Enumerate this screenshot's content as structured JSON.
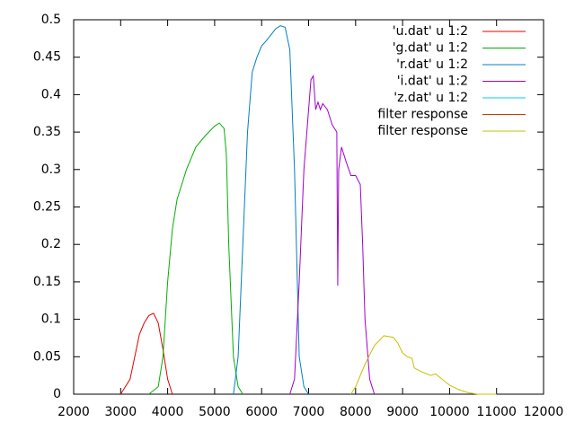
{
  "chart_data": {
    "type": "line",
    "xlim": [
      2000,
      12000
    ],
    "xticks": [
      2000,
      3000,
      4000,
      5000,
      6000,
      7000,
      8000,
      9000,
      10000,
      11000,
      12000
    ],
    "ylim": [
      0,
      0.5
    ],
    "yticks": [
      0,
      0.05,
      0.1,
      0.15,
      0.2,
      0.25,
      0.3,
      0.35,
      0.4,
      0.45,
      0.5
    ],
    "grid": false,
    "legend": "top-right",
    "series": [
      {
        "name": "'u.dat' u 1:2",
        "color": "#e00000",
        "x": [
          3000,
          3200,
          3300,
          3400,
          3500,
          3600,
          3700,
          3800,
          3900,
          4000,
          4100
        ],
        "values": [
          0,
          0.02,
          0.05,
          0.08,
          0.095,
          0.105,
          0.108,
          0.095,
          0.06,
          0.02,
          0
        ]
      },
      {
        "name": "'g.dat' u 1:2",
        "color": "#00b000",
        "x": [
          3600,
          3800,
          3900,
          4000,
          4100,
          4200,
          4400,
          4600,
          4800,
          5000,
          5100,
          5200,
          5250,
          5300,
          5400,
          5500,
          5600
        ],
        "values": [
          0,
          0.01,
          0.05,
          0.15,
          0.22,
          0.26,
          0.3,
          0.33,
          0.345,
          0.358,
          0.362,
          0.355,
          0.32,
          0.2,
          0.05,
          0.01,
          0
        ]
      },
      {
        "name": "'r.dat' u 1:2",
        "color": "#0080c0",
        "x": [
          5400,
          5500,
          5600,
          5700,
          5800,
          5900,
          6000,
          6100,
          6200,
          6300,
          6400,
          6500,
          6600,
          6700,
          6800,
          6900,
          7000
        ],
        "values": [
          0,
          0.05,
          0.2,
          0.35,
          0.43,
          0.45,
          0.465,
          0.472,
          0.48,
          0.488,
          0.492,
          0.49,
          0.46,
          0.3,
          0.05,
          0.01,
          0
        ]
      },
      {
        "name": "'i.dat' u 1:2",
        "color": "#a000d0",
        "x": [
          6600,
          6700,
          6800,
          6900,
          7000,
          7050,
          7100,
          7150,
          7200,
          7250,
          7300,
          7400,
          7500,
          7600,
          7620,
          7640,
          7700,
          7800,
          7900,
          8000,
          8100,
          8150,
          8200,
          8300,
          8400
        ],
        "values": [
          0,
          0.02,
          0.15,
          0.3,
          0.38,
          0.42,
          0.425,
          0.38,
          0.39,
          0.38,
          0.388,
          0.38,
          0.36,
          0.35,
          0.145,
          0.3,
          0.33,
          0.31,
          0.292,
          0.292,
          0.28,
          0.2,
          0.1,
          0.02,
          0
        ]
      },
      {
        "name": "'z.dat' u 1:2",
        "color": "#00d0f0",
        "x": [],
        "values": []
      },
      {
        "name": "filter response",
        "color": "#c04000",
        "x": [],
        "values": []
      },
      {
        "name": "filter response",
        "color": "#c8c000",
        "x": [
          7900,
          8000,
          8200,
          8400,
          8600,
          8800,
          8900,
          9000,
          9100,
          9200,
          9250,
          9400,
          9600,
          9700,
          9800,
          10000,
          10200,
          10400,
          10600,
          11000
        ],
        "values": [
          0,
          0.01,
          0.04,
          0.065,
          0.078,
          0.076,
          0.068,
          0.055,
          0.05,
          0.048,
          0.035,
          0.03,
          0.025,
          0.027,
          0.022,
          0.012,
          0.006,
          0.002,
          0,
          0
        ]
      }
    ]
  }
}
